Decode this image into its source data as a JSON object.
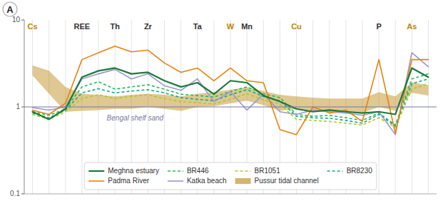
{
  "chart_data": {
    "type": "line",
    "categories": [
      null,
      null,
      null,
      null,
      null,
      null,
      null,
      null,
      null,
      null,
      null,
      null,
      null,
      null,
      null,
      null,
      null,
      null,
      null,
      null,
      null,
      null,
      null,
      null,
      null
    ],
    "series": [
      {
        "name": "Meghna estuary",
        "color": "#1a7a3a",
        "line_style": "solid",
        "values": [
          0.88,
          0.72,
          0.95,
          2.2,
          2.6,
          2.8,
          2.4,
          2.5,
          2.0,
          1.7,
          1.9,
          1.4,
          2.0,
          1.9,
          1.35,
          1.15,
          0.95,
          0.88,
          0.92,
          0.88,
          0.85,
          0.88,
          0.82,
          2.8,
          2.2
        ]
      },
      {
        "name": "BR446",
        "color": "#22bb55",
        "line_style": "dashed",
        "values": [
          0.88,
          0.8,
          0.95,
          1.7,
          1.95,
          1.6,
          1.7,
          1.8,
          1.6,
          1.4,
          1.35,
          1.3,
          1.5,
          1.7,
          1.42,
          1.28,
          0.82,
          0.78,
          0.8,
          0.75,
          0.7,
          0.85,
          0.62,
          2.1,
          2.4
        ]
      },
      {
        "name": "BR1051",
        "color": "#aacc22",
        "line_style": "dashed",
        "values": [
          0.82,
          0.72,
          0.88,
          1.25,
          1.38,
          1.25,
          1.32,
          1.38,
          1.25,
          1.15,
          1.12,
          1.08,
          1.22,
          1.42,
          1.2,
          1.08,
          0.72,
          0.7,
          0.68,
          0.65,
          0.62,
          0.75,
          0.58,
          1.6,
          1.85
        ]
      },
      {
        "name": "BR8230",
        "color": "#11aa88",
        "line_style": "dashed",
        "values": [
          0.85,
          0.75,
          0.92,
          1.45,
          1.62,
          1.45,
          1.52,
          1.58,
          1.45,
          1.28,
          1.22,
          1.18,
          1.38,
          1.58,
          1.32,
          1.18,
          0.78,
          0.75,
          0.74,
          0.7,
          0.65,
          0.82,
          0.6,
          1.85,
          2.1
        ]
      },
      {
        "name": "Padma River",
        "color": "#e8820c",
        "line_style": "solid",
        "values": [
          0.92,
          0.82,
          1.1,
          3.5,
          4.2,
          5.0,
          4.3,
          4.5,
          3.2,
          2.5,
          2.8,
          2.0,
          2.8,
          2.0,
          1.9,
          0.55,
          0.48,
          1.0,
          0.85,
          0.92,
          0.68,
          3.5,
          0.5,
          3.5,
          3.5
        ]
      },
      {
        "name": "Katka beach",
        "color": "#9999cc",
        "line_style": "solid",
        "values": [
          0.98,
          0.92,
          1.0,
          2.1,
          2.4,
          2.7,
          2.1,
          2.4,
          1.75,
          1.55,
          2.1,
          1.15,
          1.5,
          0.92,
          1.4,
          0.88,
          0.82,
          0.92,
          0.88,
          0.85,
          0.8,
          0.88,
          0.48,
          4.2,
          2.9
        ]
      },
      {
        "name": "Pussur tidal channel",
        "type": "band",
        "color": "#b8860b",
        "lower": [
          2.3,
          1.42,
          0.88,
          0.9,
          0.92,
          0.95,
          0.95,
          1.0,
          0.95,
          0.9,
          1.0,
          1.02,
          1.1,
          1.18,
          1.05,
          0.9,
          0.95,
          0.9,
          0.88,
          0.88,
          0.85,
          1.0,
          0.9,
          1.45,
          1.35
        ],
        "upper": [
          3.0,
          2.6,
          1.7,
          1.42,
          1.38,
          1.32,
          1.38,
          1.42,
          1.38,
          1.32,
          1.42,
          1.48,
          1.58,
          1.68,
          1.52,
          1.38,
          1.32,
          1.28,
          1.25,
          1.25,
          1.25,
          1.48,
          1.32,
          1.92,
          1.78
        ]
      }
    ],
    "reference_lines": [
      {
        "value": 1,
        "color": "#7777aa"
      }
    ],
    "annotations": [
      {
        "text": "Cs",
        "x": 0,
        "color": "#b8860b"
      },
      {
        "text": "REE",
        "x": 3,
        "color": "#333333"
      },
      {
        "text": "Th",
        "x": 5,
        "color": "#333333"
      },
      {
        "text": "Zr",
        "x": 7,
        "color": "#333333"
      },
      {
        "text": "Ta",
        "x": 10,
        "color": "#333333"
      },
      {
        "text": "W",
        "x": 12,
        "color": "#b8860b"
      },
      {
        "text": "Mn",
        "x": 13,
        "color": "#333333"
      },
      {
        "text": "Cu",
        "x": 16,
        "color": "#b8860b"
      },
      {
        "text": "P",
        "x": 21,
        "color": "#333333"
      },
      {
        "text": "As",
        "x": 23,
        "color": "#b8860b"
      }
    ],
    "note": {
      "text": "Bengal shelf sand",
      "x": 4.5,
      "color": "#7777aa"
    },
    "panel_label": "A",
    "log": "y",
    "ylim": [
      0.1,
      10
    ],
    "yticks": [
      0.1,
      1,
      10
    ],
    "grid": true,
    "legend": "lower center",
    "tick_labels": "y"
  }
}
